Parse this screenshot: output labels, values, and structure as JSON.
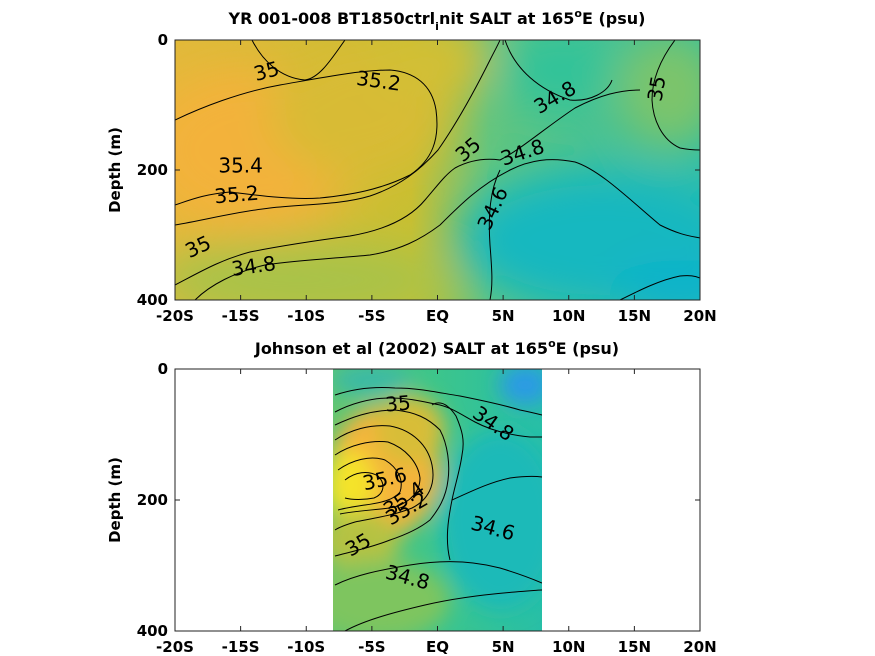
{
  "chart_data": [
    {
      "type": "contour",
      "title_main": "YR 001-008 BT1850ctrl",
      "title_sub": "i",
      "title_rest": "nit SALT at 165",
      "title_sup": "o",
      "title_end": "E (psu)",
      "ylabel": "Depth (m)",
      "xticks": [
        "-20S",
        "-15S",
        "-10S",
        "-5S",
        "EQ",
        "5N",
        "10N",
        "15N",
        "20N"
      ],
      "xtick_values": [
        -20,
        -15,
        -10,
        -5,
        0,
        5,
        10,
        15,
        20
      ],
      "yticks": [
        "0",
        "200",
        "400"
      ],
      "ytick_values": [
        0,
        200,
        400
      ],
      "xlim": [
        -20,
        20
      ],
      "ylim": [
        400,
        0
      ],
      "data_xlim": [
        -20,
        20
      ],
      "colormap": "parula",
      "contour_labels": [
        {
          "text": "35",
          "x": -13,
          "y": 50,
          "angle": -15
        },
        {
          "text": "35.2",
          "x": -4.5,
          "y": 65,
          "angle": 8
        },
        {
          "text": "34.8",
          "x": 9,
          "y": 90,
          "angle": -30
        },
        {
          "text": "35",
          "x": 16.8,
          "y": 75,
          "angle": -80
        },
        {
          "text": "35.4",
          "x": -15,
          "y": 195,
          "angle": 0
        },
        {
          "text": "35",
          "x": 2.4,
          "y": 170,
          "angle": -40
        },
        {
          "text": "34.8",
          "x": 6.5,
          "y": 175,
          "angle": -18
        },
        {
          "text": "35.2",
          "x": -15.3,
          "y": 240,
          "angle": -5
        },
        {
          "text": "34.6",
          "x": 4.3,
          "y": 260,
          "angle": -65
        },
        {
          "text": "35",
          "x": -18.2,
          "y": 320,
          "angle": -25
        },
        {
          "text": "34.8",
          "x": -14,
          "y": 350,
          "angle": -8
        }
      ]
    },
    {
      "type": "contour",
      "title_main": "Johnson et al (2002) SALT at 165",
      "title_sup": "o",
      "title_end": "E (psu)",
      "ylabel": "Depth (m)",
      "xticks": [
        "-20S",
        "-15S",
        "-10S",
        "-5S",
        "EQ",
        "5N",
        "10N",
        "15N",
        "20N"
      ],
      "xtick_values": [
        -20,
        -15,
        -10,
        -5,
        0,
        5,
        10,
        15,
        20
      ],
      "yticks": [
        "0",
        "200",
        "400"
      ],
      "ytick_values": [
        0,
        200,
        400
      ],
      "xlim": [
        -20,
        20
      ],
      "ylim": [
        400,
        0
      ],
      "data_xlim": [
        -8,
        8
      ],
      "colormap": "parula",
      "contour_labels": [
        {
          "text": "35",
          "x": -3,
          "y": 55,
          "angle": -5
        },
        {
          "text": "34.8",
          "x": 4.2,
          "y": 85,
          "angle": 35
        },
        {
          "text": "35.6",
          "x": -4,
          "y": 170,
          "angle": -12
        },
        {
          "text": "35.4",
          "x": -2.5,
          "y": 200,
          "angle": -35
        },
        {
          "text": "35.2",
          "x": -2.3,
          "y": 215,
          "angle": -30
        },
        {
          "text": "34.6",
          "x": 4.2,
          "y": 245,
          "angle": 15
        },
        {
          "text": "35",
          "x": -6,
          "y": 270,
          "angle": -30
        },
        {
          "text": "34.8",
          "x": -2.3,
          "y": 320,
          "angle": 15
        }
      ]
    }
  ]
}
